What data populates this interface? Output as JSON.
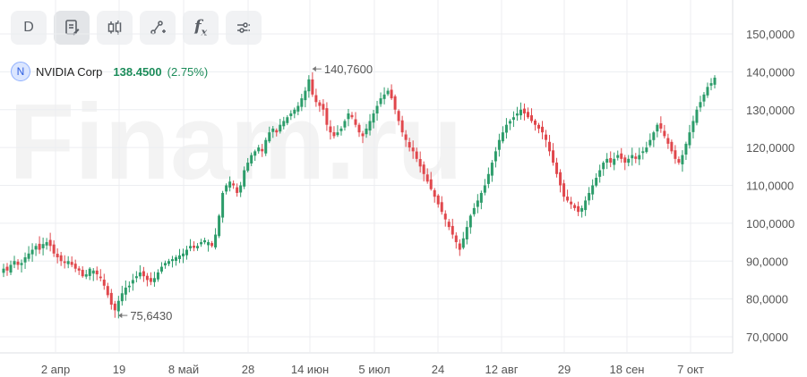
{
  "toolbar": {
    "period_label": "D",
    "buttons": [
      {
        "name": "period-button",
        "icon": "letter-d"
      },
      {
        "name": "notes-button",
        "icon": "document-edit-icon"
      },
      {
        "name": "candles-button",
        "icon": "candlestick-icon"
      },
      {
        "name": "draw-button",
        "icon": "line-draw-icon"
      },
      {
        "name": "indicators-button",
        "icon": "fx-icon"
      },
      {
        "name": "settings-button",
        "icon": "sliders-icon"
      }
    ],
    "fx_label": "f",
    "fx_sub": "x"
  },
  "legend": {
    "badge": "N",
    "name": "NVIDIA Corp",
    "price": "138.4500",
    "change": "(2.75%)"
  },
  "watermark": "Finam.ru",
  "colors": {
    "up": "#2c9c6a",
    "down": "#e0474c",
    "grid": "#eceef1",
    "accent": "#1c8c5a"
  },
  "chart_data": {
    "type": "candlestick",
    "y_ticks": [
      "150,0000",
      "140,0000",
      "130,0000",
      "120,0000",
      "110,0000",
      "100,0000",
      "90,0000",
      "80,0000",
      "70,0000"
    ],
    "x_ticks": [
      "2 апр",
      "19",
      "8 май",
      "28",
      "14 июн",
      "5 июл",
      "24",
      "12 авг",
      "29",
      "18 сен",
      "7 окт"
    ],
    "ylim": [
      66,
      152
    ],
    "annotations": [
      {
        "label": "140,7600",
        "value": 140.76,
        "index": 85
      },
      {
        "label": "75,6430",
        "value": 75.643,
        "index": 31
      }
    ],
    "close": [
      88,
      87.5,
      89,
      90,
      89,
      89.5,
      91,
      92,
      93,
      94,
      93,
      94.5,
      95,
      94,
      92,
      91,
      90,
      89.5,
      90,
      89,
      88,
      87.5,
      86,
      86.5,
      88,
      87.5,
      86.5,
      85.5,
      83.5,
      81,
      78.5,
      77,
      79.5,
      81.5,
      83,
      83.5,
      85,
      86,
      87,
      86,
      85,
      84.5,
      85.5,
      87,
      88.5,
      89.5,
      90,
      90.5,
      91,
      91.5,
      92,
      93,
      94,
      93.5,
      94,
      95,
      95.5,
      95,
      94,
      97,
      102,
      108,
      110,
      111,
      110,
      108,
      110,
      114,
      116,
      118,
      119,
      120,
      119,
      122,
      124,
      125,
      124,
      126,
      127,
      128,
      129,
      130,
      131,
      133,
      135,
      138,
      134,
      132,
      131,
      130,
      126,
      124,
      123,
      124,
      125,
      127,
      129,
      128,
      126,
      124,
      123,
      125,
      127,
      129,
      131,
      133,
      134,
      135,
      133,
      130,
      127,
      124,
      122,
      120,
      119,
      117,
      115,
      113,
      111,
      109,
      107,
      105,
      103,
      101,
      99,
      97,
      95,
      93,
      96,
      99,
      102,
      104,
      106,
      108,
      110,
      113,
      116,
      119,
      122,
      124,
      126,
      127,
      128,
      129,
      130,
      129,
      128,
      127,
      126,
      125,
      124,
      122,
      119,
      116,
      113,
      110,
      107,
      106,
      105,
      104,
      103,
      104,
      106,
      108,
      110,
      112,
      114,
      116,
      117,
      116,
      117,
      118,
      117,
      116,
      117,
      118,
      117,
      118,
      119,
      120,
      122,
      124,
      126,
      125,
      123,
      121,
      119,
      117,
      116,
      118,
      121,
      124,
      127,
      130,
      132,
      134,
      136,
      137,
      138.45
    ]
  }
}
